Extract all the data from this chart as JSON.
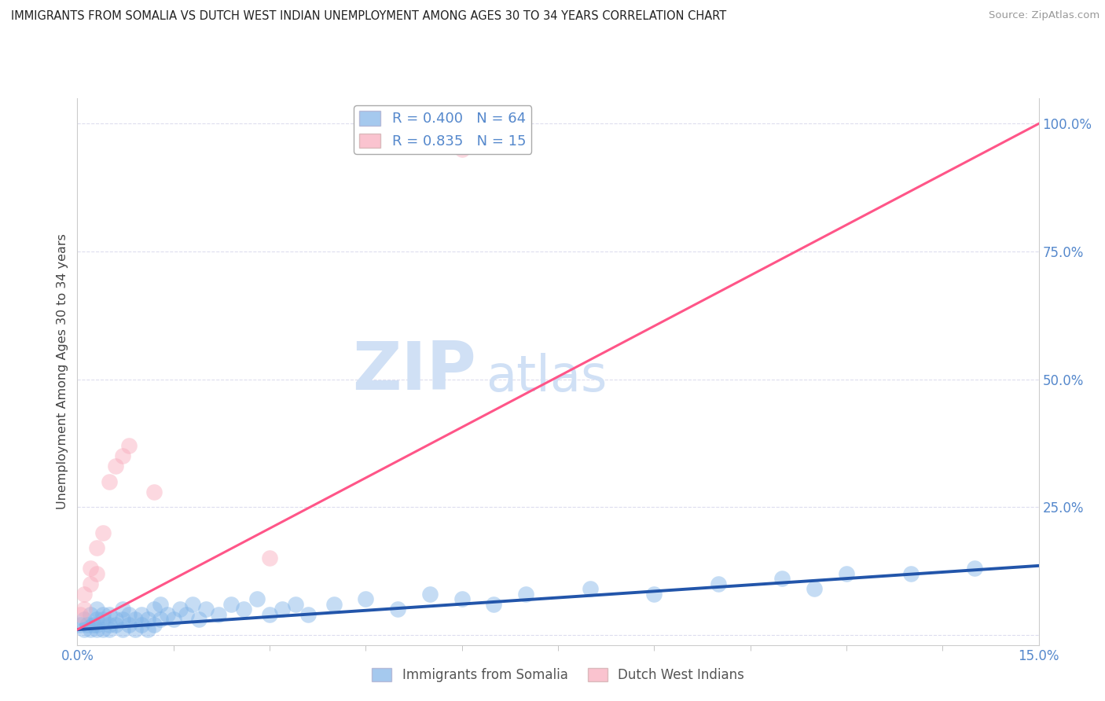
{
  "title": "IMMIGRANTS FROM SOMALIA VS DUTCH WEST INDIAN UNEMPLOYMENT AMONG AGES 30 TO 34 YEARS CORRELATION CHART",
  "source": "Source: ZipAtlas.com",
  "ylabel": "Unemployment Among Ages 30 to 34 years",
  "xlim": [
    0.0,
    0.15
  ],
  "ylim": [
    -0.02,
    1.05
  ],
  "ytick_positions": [
    0.0,
    0.25,
    0.5,
    0.75,
    1.0
  ],
  "ytick_labels": [
    "",
    "25.0%",
    "50.0%",
    "75.0%",
    "100.0%"
  ],
  "blue_R": 0.4,
  "blue_N": 64,
  "pink_R": 0.835,
  "pink_N": 15,
  "blue_color": "#7FB3E8",
  "pink_color": "#F9AABB",
  "blue_line_color": "#2255AA",
  "pink_line_color": "#FF5588",
  "axis_color": "#5588CC",
  "grid_color": "#DDDDEE",
  "legend_label_blue": "Immigrants from Somalia",
  "legend_label_pink": "Dutch West Indians",
  "blue_scatter_x": [
    0.0005,
    0.001,
    0.001,
    0.0015,
    0.002,
    0.002,
    0.0025,
    0.003,
    0.003,
    0.003,
    0.003,
    0.004,
    0.004,
    0.004,
    0.005,
    0.005,
    0.005,
    0.006,
    0.006,
    0.007,
    0.007,
    0.007,
    0.008,
    0.008,
    0.009,
    0.009,
    0.01,
    0.01,
    0.011,
    0.011,
    0.012,
    0.012,
    0.013,
    0.013,
    0.014,
    0.015,
    0.016,
    0.017,
    0.018,
    0.019,
    0.02,
    0.022,
    0.024,
    0.026,
    0.028,
    0.03,
    0.032,
    0.034,
    0.036,
    0.04,
    0.045,
    0.05,
    0.055,
    0.06,
    0.065,
    0.07,
    0.08,
    0.09,
    0.1,
    0.11,
    0.115,
    0.12,
    0.13,
    0.14
  ],
  "blue_scatter_y": [
    0.02,
    0.01,
    0.03,
    0.02,
    0.01,
    0.04,
    0.02,
    0.01,
    0.03,
    0.05,
    0.02,
    0.01,
    0.03,
    0.04,
    0.01,
    0.02,
    0.04,
    0.02,
    0.03,
    0.01,
    0.03,
    0.05,
    0.02,
    0.04,
    0.01,
    0.03,
    0.02,
    0.04,
    0.01,
    0.03,
    0.02,
    0.05,
    0.03,
    0.06,
    0.04,
    0.03,
    0.05,
    0.04,
    0.06,
    0.03,
    0.05,
    0.04,
    0.06,
    0.05,
    0.07,
    0.04,
    0.05,
    0.06,
    0.04,
    0.06,
    0.07,
    0.05,
    0.08,
    0.07,
    0.06,
    0.08,
    0.09,
    0.08,
    0.1,
    0.11,
    0.09,
    0.12,
    0.12,
    0.13
  ],
  "pink_scatter_x": [
    0.0005,
    0.001,
    0.001,
    0.002,
    0.002,
    0.003,
    0.003,
    0.004,
    0.005,
    0.006,
    0.007,
    0.008,
    0.012,
    0.03,
    0.06
  ],
  "pink_scatter_y": [
    0.04,
    0.05,
    0.08,
    0.1,
    0.13,
    0.12,
    0.17,
    0.2,
    0.3,
    0.33,
    0.35,
    0.37,
    0.28,
    0.15,
    0.95
  ],
  "blue_line_x0": 0.0,
  "blue_line_y0": 0.01,
  "blue_line_x1": 0.15,
  "blue_line_y1": 0.135,
  "pink_line_x0": 0.0,
  "pink_line_y0": 0.01,
  "pink_line_x1": 0.15,
  "pink_line_y1": 1.0
}
